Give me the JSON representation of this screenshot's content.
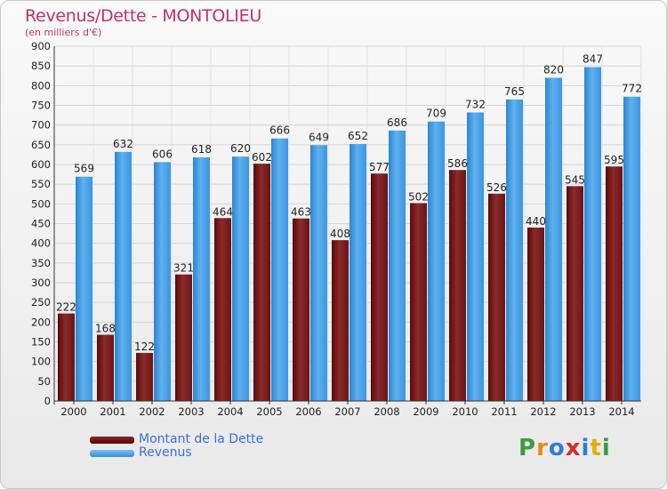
{
  "title": "Revenus/Dette - MONTOLIEU",
  "subtitle": "(en milliers d'€)",
  "colors": {
    "debt": "#6b1010",
    "revenue": "#3d9be6",
    "title": "#c0306a",
    "legend_text": "#3a6fd8"
  },
  "legend": {
    "debt_label": "Montant de la Dette",
    "revenue_label": "Revenus"
  },
  "logo": {
    "letters": [
      "P",
      "r",
      "o",
      "x",
      "i",
      "t",
      "i"
    ],
    "colors": [
      "#3e9a3e",
      "#e68a1a",
      "#2d7fd0",
      "#d52b2b",
      "#2d7fd0",
      "#e0b000",
      "#3e9a3e"
    ]
  },
  "chart_data": {
    "type": "bar",
    "title": "Revenus/Dette - MONTOLIEU",
    "ylabel": "(en milliers d'€)",
    "ylim": [
      0,
      900
    ],
    "ytick_step": 50,
    "grid": true,
    "legend_position": "bottom-left",
    "categories": [
      "2000",
      "2001",
      "2002",
      "2003",
      "2004",
      "2005",
      "2006",
      "2007",
      "2008",
      "2009",
      "2010",
      "2011",
      "2012",
      "2013",
      "2014"
    ],
    "series": [
      {
        "name": "Montant de la Dette",
        "values": [
          222,
          168,
          122,
          321,
          464,
          602,
          463,
          408,
          577,
          502,
          586,
          526,
          440,
          545,
          595
        ]
      },
      {
        "name": "Revenus",
        "values": [
          569,
          632,
          606,
          618,
          620,
          666,
          649,
          652,
          686,
          709,
          732,
          765,
          820,
          847,
          772
        ]
      }
    ]
  }
}
